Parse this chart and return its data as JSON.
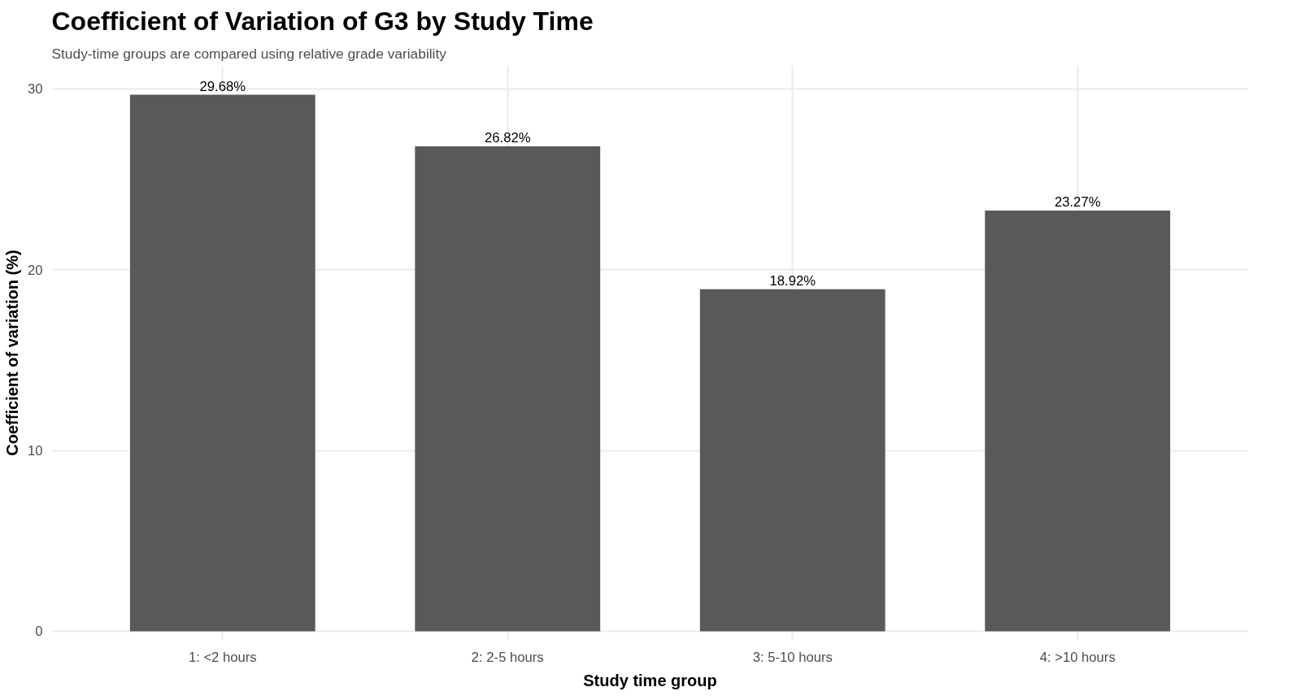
{
  "chart_data": {
    "type": "bar",
    "title": "Coefficient of Variation of G3 by Study Time",
    "subtitle": "Study-time groups are compared using relative grade variability",
    "xlabel": "Study time group",
    "ylabel": "Coefficient of variation (%)",
    "categories": [
      "1: <2 hours",
      "2: 2-5 hours",
      "3: 5-10 hours",
      "4: >10 hours"
    ],
    "values": [
      29.68,
      26.82,
      18.92,
      23.27
    ],
    "value_labels": [
      "29.68%",
      "26.82%",
      "18.92%",
      "23.27%"
    ],
    "color": "#595959",
    "ylim": [
      -0.5,
      31.3
    ],
    "yticks": [
      0,
      10,
      20,
      30
    ],
    "grid": true
  }
}
